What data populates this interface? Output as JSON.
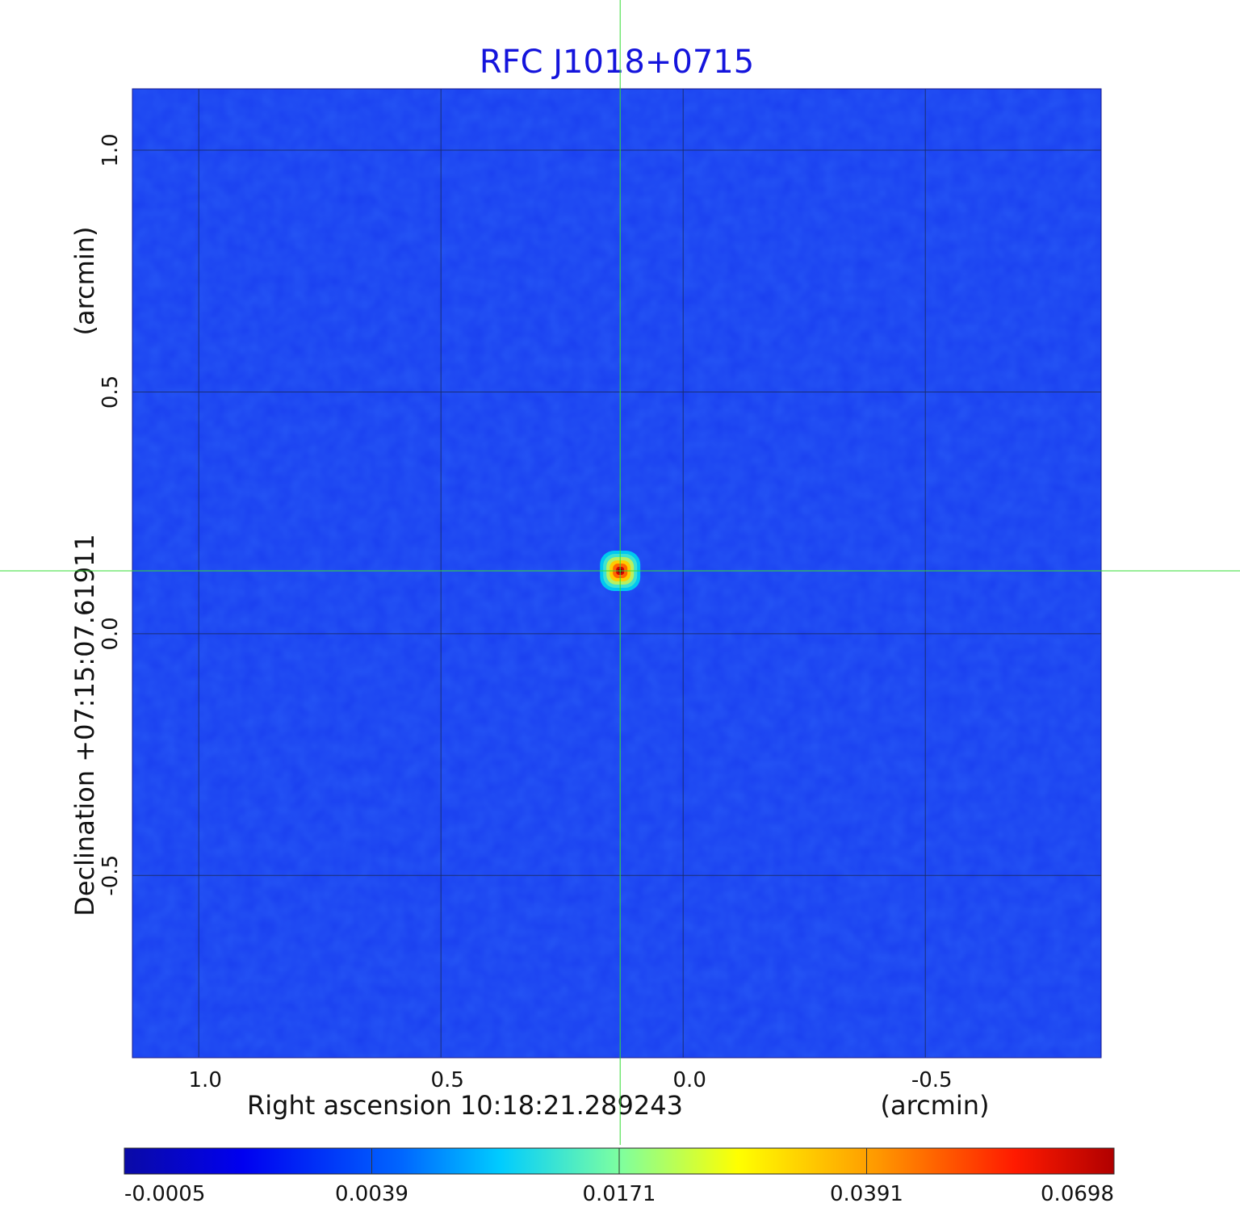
{
  "chart_data": {
    "type": "heatmap",
    "title": "RFC J1018+0715",
    "xlabel": "Right ascension  10:18:21.289243",
    "xunit": "(arcmin)",
    "ylabel": "Declination  +07:15:07.61911",
    "yunit": "(arcmin)",
    "xlim": [
      1.137,
      -0.863
    ],
    "ylim": [
      -0.877,
      1.127
    ],
    "x_ticks": [
      {
        "value": 1.0,
        "label": "1.0"
      },
      {
        "value": 0.5,
        "label": "0.5"
      },
      {
        "value": 0.0,
        "label": "0.0"
      },
      {
        "value": -0.5,
        "label": "-0.5"
      }
    ],
    "y_ticks": [
      {
        "value": 1.0,
        "label": "1.0"
      },
      {
        "value": 0.5,
        "label": "0.5"
      },
      {
        "value": 0.0,
        "label": "0.0"
      },
      {
        "value": -0.5,
        "label": "-0.5"
      }
    ],
    "grid": true,
    "crosshair": {
      "x": 0.13,
      "y": 0.13
    },
    "source": {
      "x": 0.13,
      "y": 0.13,
      "peak": 0.0698
    },
    "colormap": "jet",
    "colorbar": {
      "orientation": "horizontal",
      "ticks": [
        "-0.0005",
        "0.0039",
        "0.0171",
        "0.0391",
        "0.0698"
      ]
    }
  }
}
